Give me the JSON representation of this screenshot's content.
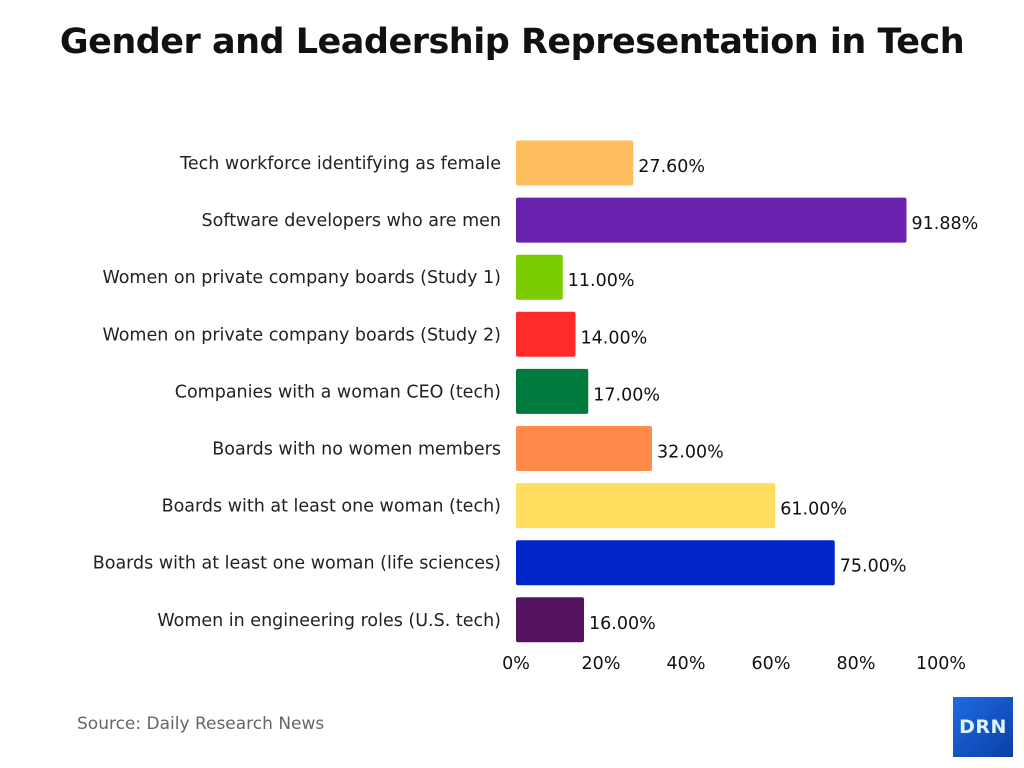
{
  "chart_data": {
    "type": "bar",
    "orientation": "horizontal",
    "title": "Gender and Leadership Representation in Tech",
    "categories": [
      "Tech workforce identifying as female",
      "Software developers who are men",
      "Women on private company boards (Study 1)",
      "Women on private company boards (Study 2)",
      "Companies with a woman CEO (tech)",
      "Boards with no women members",
      "Boards with at least one woman (tech)",
      "Boards with at least one woman (life sciences)",
      "Women in engineering roles (U.S. tech)"
    ],
    "values": [
      27.6,
      91.88,
      11.0,
      14.0,
      17.0,
      32.0,
      61.0,
      75.0,
      16.0
    ],
    "data_labels": [
      "27.60%",
      "91.88%",
      "11.00%",
      "14.00%",
      "17.00%",
      "32.00%",
      "61.00%",
      "75.00%",
      "16.00%"
    ],
    "colors": [
      "#FFBE5E",
      "#6A22AE",
      "#7ACC00",
      "#FF2A2A",
      "#007A3D",
      "#FF8A4A",
      "#FFDD5E",
      "#0025C9",
      "#55145F"
    ],
    "xlim": [
      0,
      100
    ],
    "xticks": [
      "0%",
      "20%",
      "40%",
      "60%",
      "80%",
      "100%"
    ],
    "xlabel": "",
    "ylabel": "",
    "grid": false,
    "legend": "none"
  },
  "footer": {
    "source": "Source: Daily Research News",
    "logo_text": "DRN"
  }
}
